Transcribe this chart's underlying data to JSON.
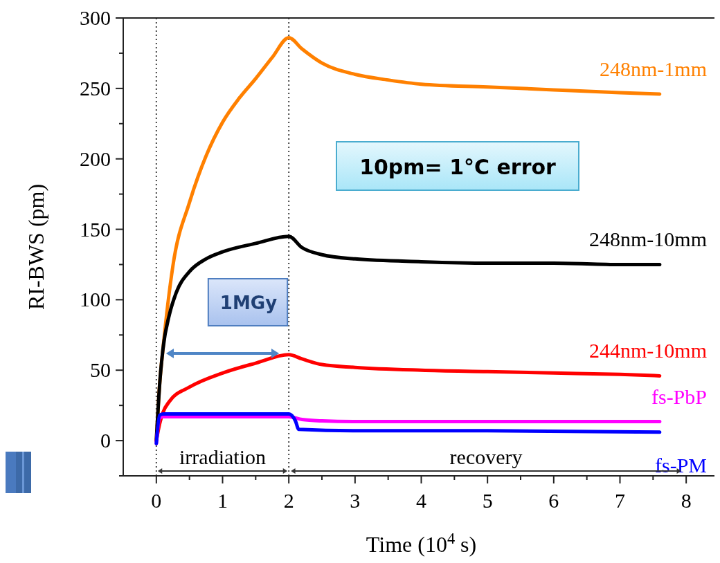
{
  "chart_data": {
    "type": "line",
    "xlabel": "Time (10$^{4}$ s)",
    "ylabel": "RI-BWS (pm)",
    "xlim": [
      -0.5,
      8.5
    ],
    "ylim": [
      -25,
      300
    ],
    "xticks": [
      0,
      {
        "value": 0.5,
        "label": null
      },
      1,
      {
        "value": 1.5,
        "label": null
      },
      2,
      {
        "value": 2.5,
        "label": null
      },
      3,
      {
        "value": 3.5,
        "label": null
      },
      4,
      {
        "value": 4.5,
        "label": null
      },
      5,
      {
        "value": 5.5,
        "label": null
      },
      6,
      {
        "value": 6.5,
        "label": null
      },
      7,
      {
        "value": 7.5,
        "label": null
      },
      8
    ],
    "yticks": [
      {
        "value": -25,
        "label": null
      },
      0,
      {
        "value": 25,
        "label": null
      },
      50,
      {
        "value": 75,
        "label": null
      },
      100,
      {
        "value": 125,
        "label": null
      },
      150,
      {
        "value": 175,
        "label": null
      },
      200,
      {
        "value": 225,
        "label": null
      },
      250,
      {
        "value": 275,
        "label": null
      },
      300
    ],
    "grid": false,
    "legend": false,
    "marker": "none",
    "line_style": "solid",
    "series": [
      {
        "name": "248nm-1mm",
        "color": "#ff8000",
        "x": [
          0,
          0.05,
          0.1,
          0.25,
          0.5,
          0.75,
          1,
          1.25,
          1.5,
          1.75,
          2,
          2.2,
          2.5,
          3,
          3.5,
          4,
          5,
          6,
          7,
          7.6
        ],
        "values": [
          0,
          40,
          65,
          124,
          169,
          202,
          226,
          243,
          257,
          272,
          286,
          278,
          268,
          260,
          256,
          253,
          251,
          249,
          247,
          246
        ]
      },
      {
        "name": "248nm-10mm",
        "color": "#000000",
        "x": [
          0,
          0.05,
          0.1,
          0.2,
          0.3,
          0.5,
          0.75,
          1,
          1.5,
          2,
          2.2,
          2.5,
          3,
          4,
          5,
          6,
          7,
          7.6
        ],
        "values": [
          0,
          40,
          65,
          90,
          105,
          120,
          129,
          134,
          140,
          145,
          137,
          132,
          129,
          127,
          126,
          126,
          125,
          125
        ]
      },
      {
        "name": "244nm-10mm",
        "color": "#ff0000",
        "x": [
          0,
          0.05,
          0.1,
          0.2,
          0.5,
          1,
          1.5,
          2,
          2.2,
          2.5,
          3,
          4,
          5,
          6,
          7,
          7.6
        ],
        "values": [
          0,
          12,
          20,
          28,
          38,
          48,
          55,
          61,
          58,
          54,
          52,
          50,
          49,
          48,
          47,
          46
        ]
      },
      {
        "name": "fs-PbP",
        "color": "#ff00ff",
        "x": [
          0,
          0.05,
          0.1,
          1,
          2,
          2.2,
          2.5,
          3,
          5,
          7.6
        ],
        "values": [
          -2,
          16,
          17,
          17,
          17,
          15,
          14,
          13.5,
          13.5,
          13.5
        ]
      },
      {
        "name": "fs-PM",
        "color": "#0000ff",
        "x": [
          0,
          0.05,
          0.1,
          1,
          2,
          2.1,
          2.15,
          3,
          5,
          7.6
        ],
        "values": [
          -2,
          18,
          19,
          19,
          19,
          14,
          8,
          7,
          7,
          6
        ]
      }
    ],
    "ref_lines": [
      {
        "axis": "x",
        "value": 0,
        "color": "#444444",
        "line_style": "dotted"
      },
      {
        "axis": "x",
        "value": 2,
        "color": "#444444",
        "line_style": "dotted"
      }
    ],
    "annotations": [
      "10pm= 1°C error",
      "1MGy",
      "irradiation",
      "recovery"
    ]
  }
}
